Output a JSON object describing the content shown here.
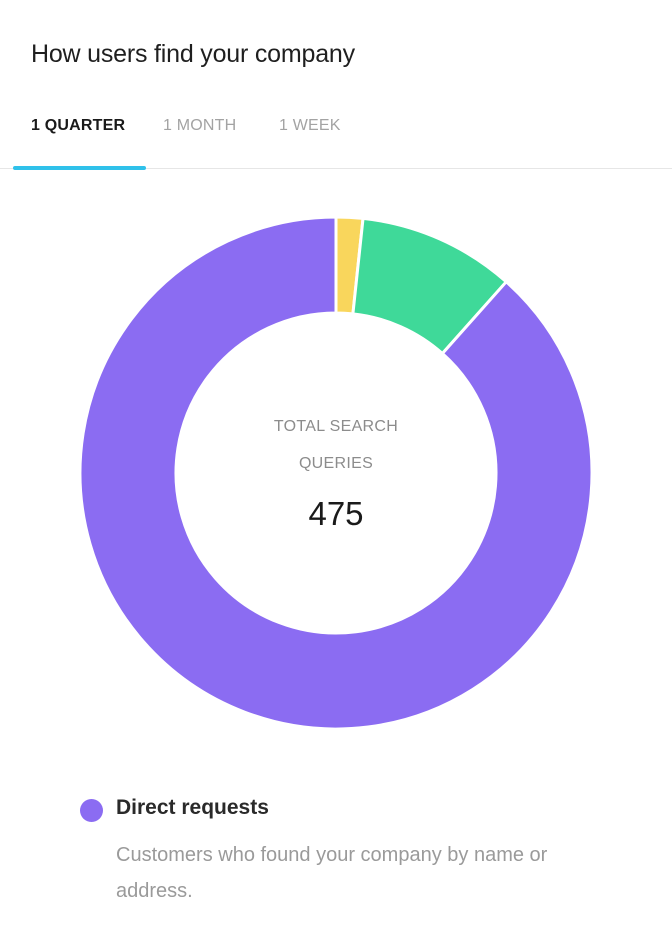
{
  "card": {
    "title": "How users find your company"
  },
  "tabs": [
    {
      "label": "1 QUARTER",
      "active": true
    },
    {
      "label": "1 MONTH",
      "active": false
    },
    {
      "label": "1 WEEK",
      "active": false
    }
  ],
  "center": {
    "label_line1": "TOTAL SEARCH",
    "label_line2": "QUERIES",
    "value": "475"
  },
  "colors": {
    "accent_tab": "#2fc1ea",
    "direct": "#8b6cf2",
    "discovery": "#3fd999",
    "branded": "#f9d65c"
  },
  "chart_data": {
    "type": "pie",
    "donut": true,
    "total": 475,
    "slices": [
      {
        "color": "#f9d65c",
        "value": 8
      },
      {
        "color": "#3fd999",
        "value": 47
      },
      {
        "color": "#8b6cf2",
        "value": 420
      }
    ]
  },
  "legend": {
    "name": "Direct requests",
    "description": "Customers who found your company by name or address.",
    "icon": "legend-dot"
  }
}
